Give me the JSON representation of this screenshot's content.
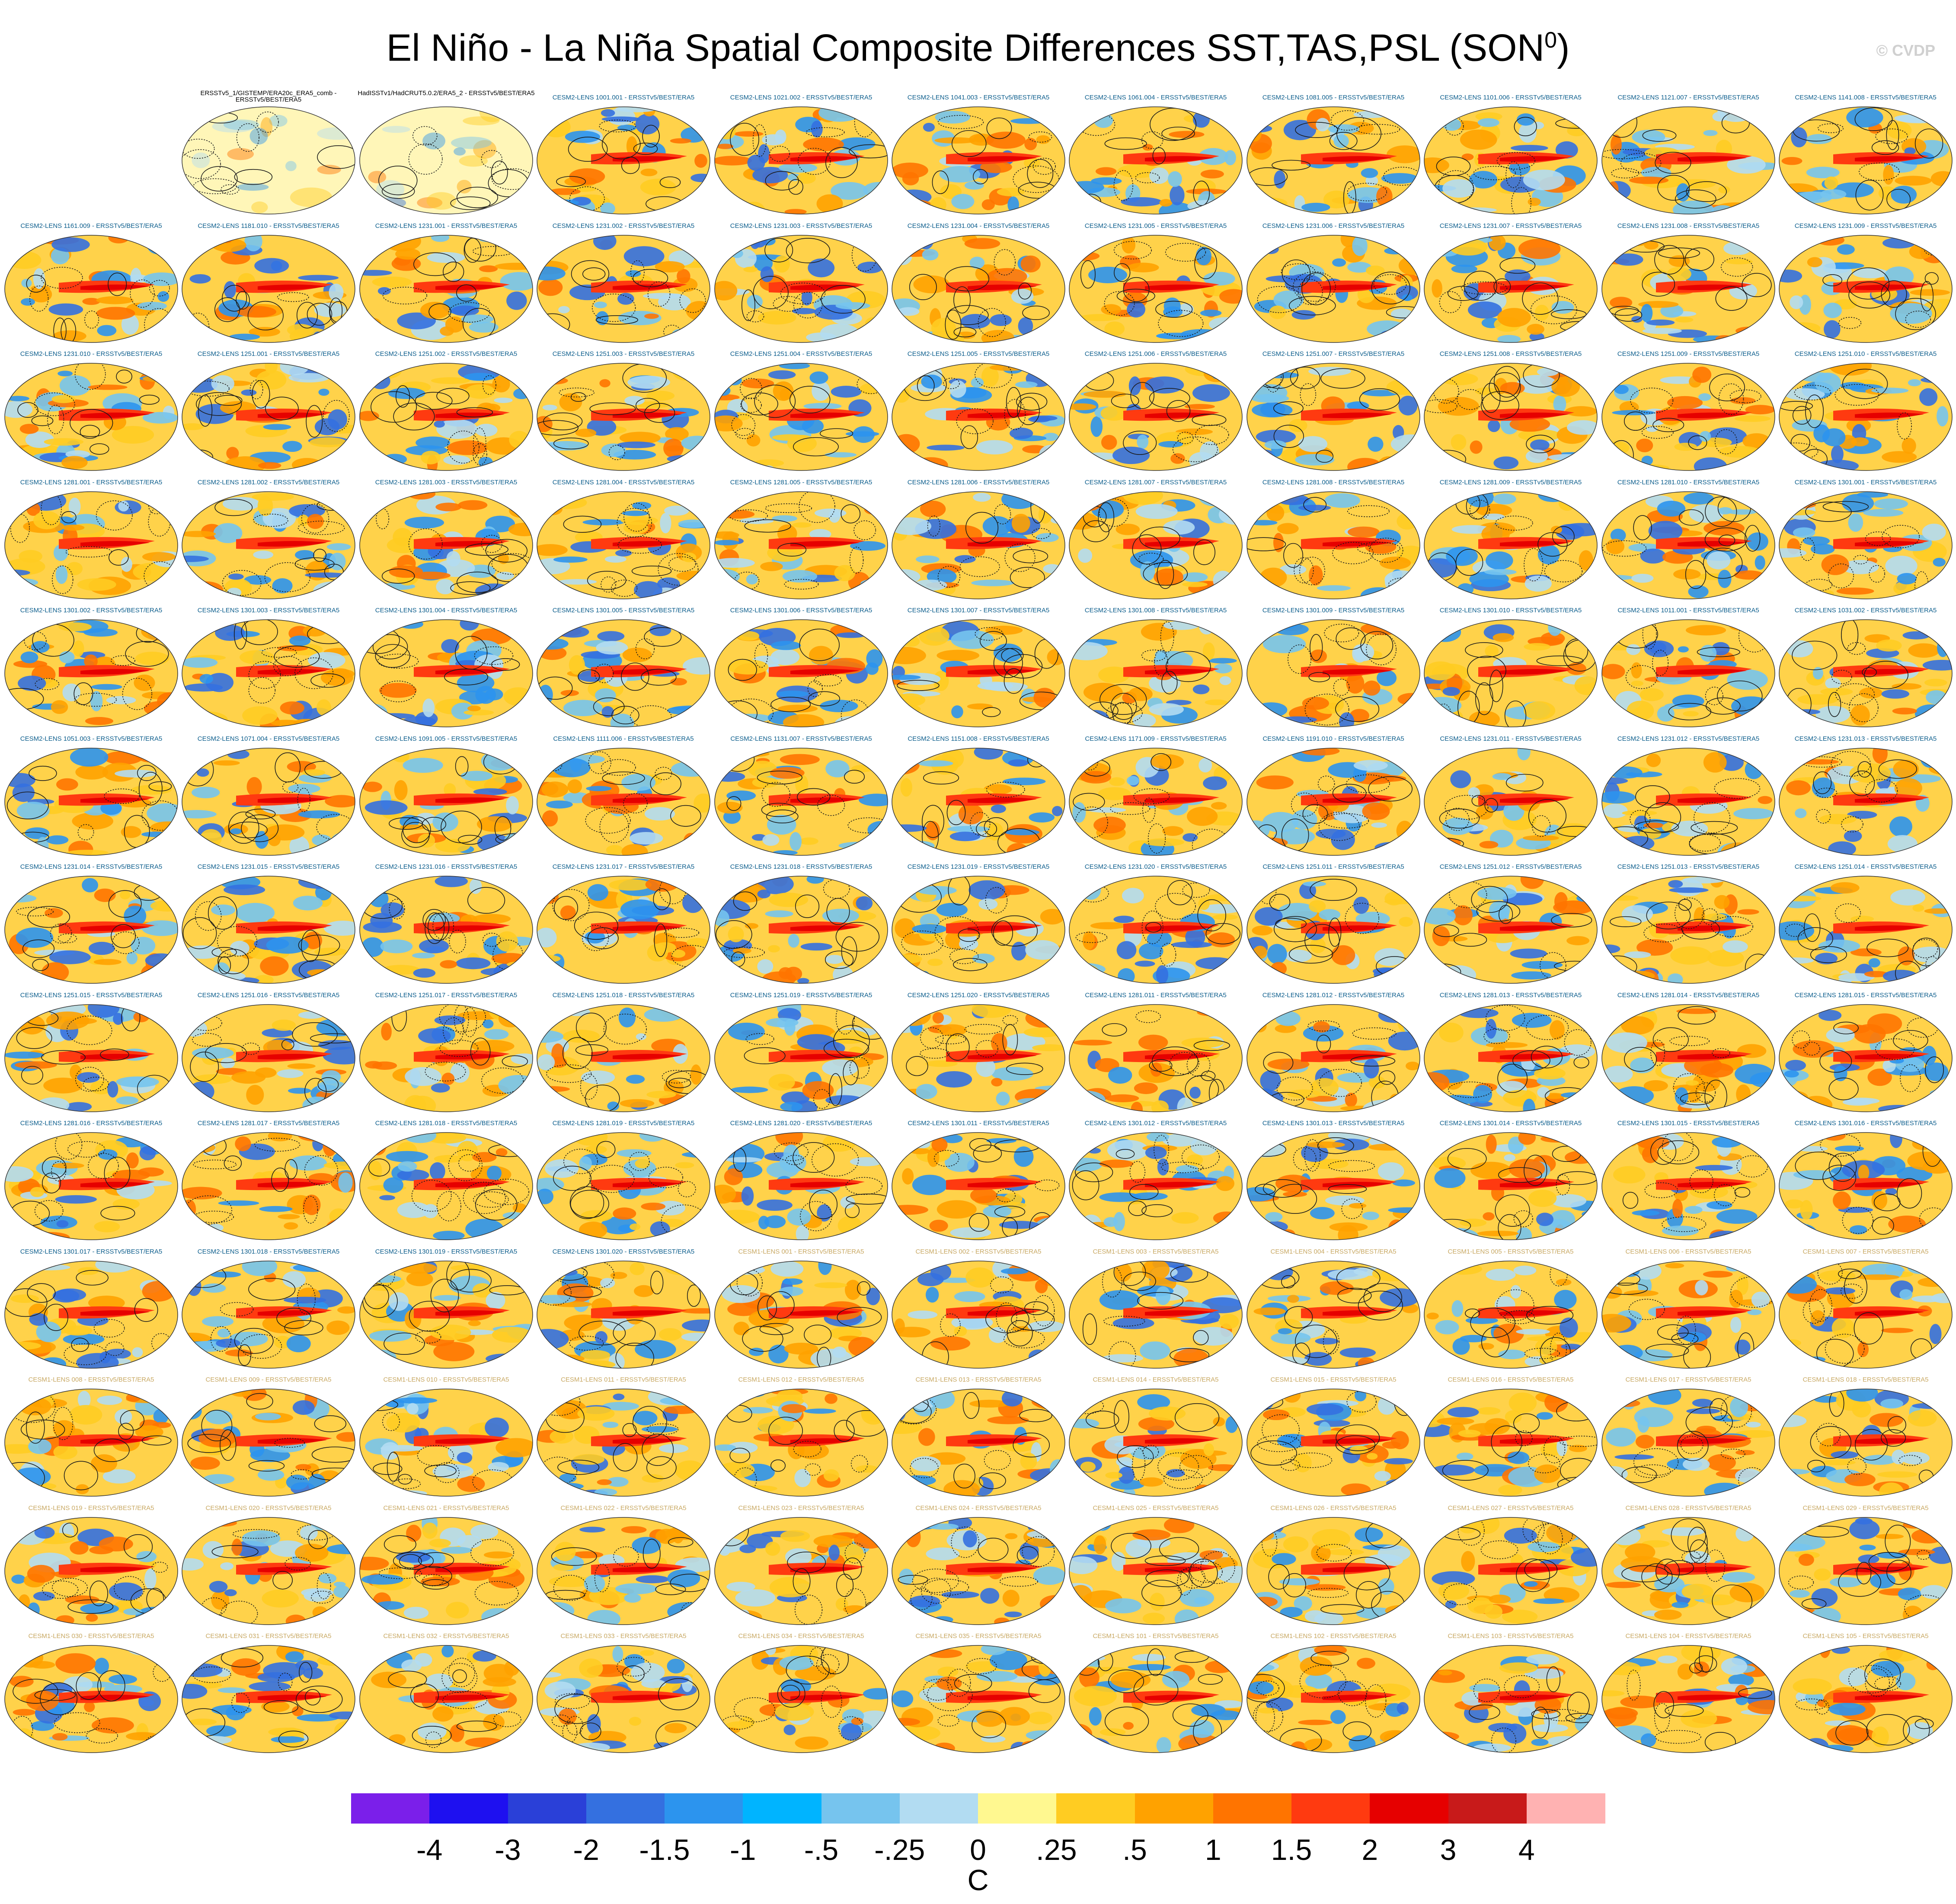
{
  "title": {
    "text": "El Niño - La Niña Spatial Composite Differences SST,TAS,PSL (SON",
    "superscript": "0",
    "suffix": ")"
  },
  "watermark": "© CVDP",
  "colorbar": {
    "colors": [
      "#7b1fea",
      "#1e10f0",
      "#2a40d8",
      "#3470e0",
      "#2c94ee",
      "#00b4ff",
      "#76c4ee",
      "#b2dcf2",
      "#fff890",
      "#ffcc22",
      "#ffa200",
      "#ff7400",
      "#ff3a10",
      "#e60000",
      "#c81a1a",
      "#ffb2b2"
    ],
    "labels": [
      "-4",
      "-3",
      "-2",
      "-1.5",
      "-1",
      "-.5",
      "-.25",
      "0",
      ".25",
      ".5",
      "1",
      "1.5",
      "2",
      "3",
      "4"
    ],
    "units": "C"
  },
  "chart_data": {
    "type": "heatmap",
    "title": "El Niño - La Niña Spatial Composite Differences SST,TAS,PSL (SON0)",
    "variables": [
      "SST",
      "TAS",
      "PSL"
    ],
    "season": "SON",
    "units": "C",
    "color_levels": [
      -4,
      -3,
      -2,
      -1.5,
      -1,
      -0.5,
      -0.25,
      0,
      0.25,
      0.5,
      1,
      1.5,
      2,
      3,
      4
    ],
    "grid_layout": {
      "rows": 13,
      "columns": 11
    },
    "panels": [
      {
        "label": "ERSSTv5_1/GISTEMP/ERA20c_ERA5_comb - ERSSTv5/BEST/ERA5",
        "group": "obs"
      },
      {
        "label": "HadISSTv1/HadCRUT5.0.2/ERA5_2 - ERSSTv5/BEST/ERA5",
        "group": "obs"
      },
      {
        "label": "CESM2-LENS 1001.001 - ERSSTv5/BEST/ERA5",
        "group": "cesm2"
      },
      {
        "label": "CESM2-LENS 1021.002 - ERSSTv5/BEST/ERA5",
        "group": "cesm2"
      },
      {
        "label": "CESM2-LENS 1041.003 - ERSSTv5/BEST/ERA5",
        "group": "cesm2"
      },
      {
        "label": "CESM2-LENS 1061.004 - ERSSTv5/BEST/ERA5",
        "group": "cesm2"
      },
      {
        "label": "CESM2-LENS 1081.005 - ERSSTv5/BEST/ERA5",
        "group": "cesm2"
      },
      {
        "label": "CESM2-LENS 1101.006 - ERSSTv5/BEST/ERA5",
        "group": "cesm2"
      },
      {
        "label": "CESM2-LENS 1121.007 - ERSSTv5/BEST/ERA5",
        "group": "cesm2"
      },
      {
        "label": "CESM2-LENS 1141.008 - ERSSTv5/BEST/ERA5",
        "group": "cesm2"
      },
      {
        "label": "CESM2-LENS 1161.009 - ERSSTv5/BEST/ERA5",
        "group": "cesm2"
      },
      {
        "label": "CESM2-LENS 1181.010 - ERSSTv5/BEST/ERA5",
        "group": "cesm2"
      },
      {
        "label": "CESM2-LENS 1231.001 - ERSSTv5/BEST/ERA5",
        "group": "cesm2"
      },
      {
        "label": "CESM2-LENS 1231.002 - ERSSTv5/BEST/ERA5",
        "group": "cesm2"
      },
      {
        "label": "CESM2-LENS 1231.003 - ERSSTv5/BEST/ERA5",
        "group": "cesm2"
      },
      {
        "label": "CESM2-LENS 1231.004 - ERSSTv5/BEST/ERA5",
        "group": "cesm2"
      },
      {
        "label": "CESM2-LENS 1231.005 - ERSSTv5/BEST/ERA5",
        "group": "cesm2"
      },
      {
        "label": "CESM2-LENS 1231.006 - ERSSTv5/BEST/ERA5",
        "group": "cesm2"
      },
      {
        "label": "CESM2-LENS 1231.007 - ERSSTv5/BEST/ERA5",
        "group": "cesm2"
      },
      {
        "label": "CESM2-LENS 1231.008 - ERSSTv5/BEST/ERA5",
        "group": "cesm2"
      },
      {
        "label": "CESM2-LENS 1231.009 - ERSSTv5/BEST/ERA5",
        "group": "cesm2"
      },
      {
        "label": "CESM2-LENS 1231.010 - ERSSTv5/BEST/ERA5",
        "group": "cesm2"
      },
      {
        "label": "CESM2-LENS 1251.001 - ERSSTv5/BEST/ERA5",
        "group": "cesm2"
      },
      {
        "label": "CESM2-LENS 1251.002 - ERSSTv5/BEST/ERA5",
        "group": "cesm2"
      },
      {
        "label": "CESM2-LENS 1251.003 - ERSSTv5/BEST/ERA5",
        "group": "cesm2"
      },
      {
        "label": "CESM2-LENS 1251.004 - ERSSTv5/BEST/ERA5",
        "group": "cesm2"
      },
      {
        "label": "CESM2-LENS 1251.005 - ERSSTv5/BEST/ERA5",
        "group": "cesm2"
      },
      {
        "label": "CESM2-LENS 1251.006 - ERSSTv5/BEST/ERA5",
        "group": "cesm2"
      },
      {
        "label": "CESM2-LENS 1251.007 - ERSSTv5/BEST/ERA5",
        "group": "cesm2"
      },
      {
        "label": "CESM2-LENS 1251.008 - ERSSTv5/BEST/ERA5",
        "group": "cesm2"
      },
      {
        "label": "CESM2-LENS 1251.009 - ERSSTv5/BEST/ERA5",
        "group": "cesm2"
      },
      {
        "label": "CESM2-LENS 1251.010 - ERSSTv5/BEST/ERA5",
        "group": "cesm2"
      },
      {
        "label": "CESM2-LENS 1281.001 - ERSSTv5/BEST/ERA5",
        "group": "cesm2"
      },
      {
        "label": "CESM2-LENS 1281.002 - ERSSTv5/BEST/ERA5",
        "group": "cesm2"
      },
      {
        "label": "CESM2-LENS 1281.003 - ERSSTv5/BEST/ERA5",
        "group": "cesm2"
      },
      {
        "label": "CESM2-LENS 1281.004 - ERSSTv5/BEST/ERA5",
        "group": "cesm2"
      },
      {
        "label": "CESM2-LENS 1281.005 - ERSSTv5/BEST/ERA5",
        "group": "cesm2"
      },
      {
        "label": "CESM2-LENS 1281.006 - ERSSTv5/BEST/ERA5",
        "group": "cesm2"
      },
      {
        "label": "CESM2-LENS 1281.007 - ERSSTv5/BEST/ERA5",
        "group": "cesm2"
      },
      {
        "label": "CESM2-LENS 1281.008 - ERSSTv5/BEST/ERA5",
        "group": "cesm2"
      },
      {
        "label": "CESM2-LENS 1281.009 - ERSSTv5/BEST/ERA5",
        "group": "cesm2"
      },
      {
        "label": "CESM2-LENS 1281.010 - ERSSTv5/BEST/ERA5",
        "group": "cesm2"
      },
      {
        "label": "CESM2-LENS 1301.001 - ERSSTv5/BEST/ERA5",
        "group": "cesm2"
      },
      {
        "label": "CESM2-LENS 1301.002 - ERSSTv5/BEST/ERA5",
        "group": "cesm2"
      },
      {
        "label": "CESM2-LENS 1301.003 - ERSSTv5/BEST/ERA5",
        "group": "cesm2"
      },
      {
        "label": "CESM2-LENS 1301.004 - ERSSTv5/BEST/ERA5",
        "group": "cesm2"
      },
      {
        "label": "CESM2-LENS 1301.005 - ERSSTv5/BEST/ERA5",
        "group": "cesm2"
      },
      {
        "label": "CESM2-LENS 1301.006 - ERSSTv5/BEST/ERA5",
        "group": "cesm2"
      },
      {
        "label": "CESM2-LENS 1301.007 - ERSSTv5/BEST/ERA5",
        "group": "cesm2"
      },
      {
        "label": "CESM2-LENS 1301.008 - ERSSTv5/BEST/ERA5",
        "group": "cesm2"
      },
      {
        "label": "CESM2-LENS 1301.009 - ERSSTv5/BEST/ERA5",
        "group": "cesm2"
      },
      {
        "label": "CESM2-LENS 1301.010 - ERSSTv5/BEST/ERA5",
        "group": "cesm2"
      },
      {
        "label": "CESM2-LENS 1011.001 - ERSSTv5/BEST/ERA5",
        "group": "cesm2"
      },
      {
        "label": "CESM2-LENS 1031.002 - ERSSTv5/BEST/ERA5",
        "group": "cesm2"
      },
      {
        "label": "CESM2-LENS 1051.003 - ERSSTv5/BEST/ERA5",
        "group": "cesm2"
      },
      {
        "label": "CESM2-LENS 1071.004 - ERSSTv5/BEST/ERA5",
        "group": "cesm2"
      },
      {
        "label": "CESM2-LENS 1091.005 - ERSSTv5/BEST/ERA5",
        "group": "cesm2"
      },
      {
        "label": "CESM2-LENS 1111.006 - ERSSTv5/BEST/ERA5",
        "group": "cesm2"
      },
      {
        "label": "CESM2-LENS 1131.007 - ERSSTv5/BEST/ERA5",
        "group": "cesm2"
      },
      {
        "label": "CESM2-LENS 1151.008 - ERSSTv5/BEST/ERA5",
        "group": "cesm2"
      },
      {
        "label": "CESM2-LENS 1171.009 - ERSSTv5/BEST/ERA5",
        "group": "cesm2"
      },
      {
        "label": "CESM2-LENS 1191.010 - ERSSTv5/BEST/ERA5",
        "group": "cesm2"
      },
      {
        "label": "CESM2-LENS 1231.011 - ERSSTv5/BEST/ERA5",
        "group": "cesm2"
      },
      {
        "label": "CESM2-LENS 1231.012 - ERSSTv5/BEST/ERA5",
        "group": "cesm2"
      },
      {
        "label": "CESM2-LENS 1231.013 - ERSSTv5/BEST/ERA5",
        "group": "cesm2"
      },
      {
        "label": "CESM2-LENS 1231.014 - ERSSTv5/BEST/ERA5",
        "group": "cesm2"
      },
      {
        "label": "CESM2-LENS 1231.015 - ERSSTv5/BEST/ERA5",
        "group": "cesm2"
      },
      {
        "label": "CESM2-LENS 1231.016 - ERSSTv5/BEST/ERA5",
        "group": "cesm2"
      },
      {
        "label": "CESM2-LENS 1231.017 - ERSSTv5/BEST/ERA5",
        "group": "cesm2"
      },
      {
        "label": "CESM2-LENS 1231.018 - ERSSTv5/BEST/ERA5",
        "group": "cesm2"
      },
      {
        "label": "CESM2-LENS 1231.019 - ERSSTv5/BEST/ERA5",
        "group": "cesm2"
      },
      {
        "label": "CESM2-LENS 1231.020 - ERSSTv5/BEST/ERA5",
        "group": "cesm2"
      },
      {
        "label": "CESM2-LENS 1251.011 - ERSSTv5/BEST/ERA5",
        "group": "cesm2"
      },
      {
        "label": "CESM2-LENS 1251.012 - ERSSTv5/BEST/ERA5",
        "group": "cesm2"
      },
      {
        "label": "CESM2-LENS 1251.013 - ERSSTv5/BEST/ERA5",
        "group": "cesm2"
      },
      {
        "label": "CESM2-LENS 1251.014 - ERSSTv5/BEST/ERA5",
        "group": "cesm2"
      },
      {
        "label": "CESM2-LENS 1251.015 - ERSSTv5/BEST/ERA5",
        "group": "cesm2"
      },
      {
        "label": "CESM2-LENS 1251.016 - ERSSTv5/BEST/ERA5",
        "group": "cesm2"
      },
      {
        "label": "CESM2-LENS 1251.017 - ERSSTv5/BEST/ERA5",
        "group": "cesm2"
      },
      {
        "label": "CESM2-LENS 1251.018 - ERSSTv5/BEST/ERA5",
        "group": "cesm2"
      },
      {
        "label": "CESM2-LENS 1251.019 - ERSSTv5/BEST/ERA5",
        "group": "cesm2"
      },
      {
        "label": "CESM2-LENS 1251.020 - ERSSTv5/BEST/ERA5",
        "group": "cesm2"
      },
      {
        "label": "CESM2-LENS 1281.011 - ERSSTv5/BEST/ERA5",
        "group": "cesm2"
      },
      {
        "label": "CESM2-LENS 1281.012 - ERSSTv5/BEST/ERA5",
        "group": "cesm2"
      },
      {
        "label": "CESM2-LENS 1281.013 - ERSSTv5/BEST/ERA5",
        "group": "cesm2"
      },
      {
        "label": "CESM2-LENS 1281.014 - ERSSTv5/BEST/ERA5",
        "group": "cesm2"
      },
      {
        "label": "CESM2-LENS 1281.015 - ERSSTv5/BEST/ERA5",
        "group": "cesm2"
      },
      {
        "label": "CESM2-LENS 1281.016 - ERSSTv5/BEST/ERA5",
        "group": "cesm2"
      },
      {
        "label": "CESM2-LENS 1281.017 - ERSSTv5/BEST/ERA5",
        "group": "cesm2"
      },
      {
        "label": "CESM2-LENS 1281.018 - ERSSTv5/BEST/ERA5",
        "group": "cesm2"
      },
      {
        "label": "CESM2-LENS 1281.019 - ERSSTv5/BEST/ERA5",
        "group": "cesm2"
      },
      {
        "label": "CESM2-LENS 1281.020 - ERSSTv5/BEST/ERA5",
        "group": "cesm2"
      },
      {
        "label": "CESM2-LENS 1301.011 - ERSSTv5/BEST/ERA5",
        "group": "cesm2"
      },
      {
        "label": "CESM2-LENS 1301.012 - ERSSTv5/BEST/ERA5",
        "group": "cesm2"
      },
      {
        "label": "CESM2-LENS 1301.013 - ERSSTv5/BEST/ERA5",
        "group": "cesm2"
      },
      {
        "label": "CESM2-LENS 1301.014 - ERSSTv5/BEST/ERA5",
        "group": "cesm2"
      },
      {
        "label": "CESM2-LENS 1301.015 - ERSSTv5/BEST/ERA5",
        "group": "cesm2"
      },
      {
        "label": "CESM2-LENS 1301.016 - ERSSTv5/BEST/ERA5",
        "group": "cesm2"
      },
      {
        "label": "CESM2-LENS 1301.017 - ERSSTv5/BEST/ERA5",
        "group": "cesm2"
      },
      {
        "label": "CESM2-LENS 1301.018 - ERSSTv5/BEST/ERA5",
        "group": "cesm2"
      },
      {
        "label": "CESM2-LENS 1301.019 - ERSSTv5/BEST/ERA5",
        "group": "cesm2"
      },
      {
        "label": "CESM2-LENS 1301.020 - ERSSTv5/BEST/ERA5",
        "group": "cesm2"
      },
      {
        "label": "CESM1-LENS 001 - ERSSTv5/BEST/ERA5",
        "group": "cesm1"
      },
      {
        "label": "CESM1-LENS 002 - ERSSTv5/BEST/ERA5",
        "group": "cesm1"
      },
      {
        "label": "CESM1-LENS 003 - ERSSTv5/BEST/ERA5",
        "group": "cesm1"
      },
      {
        "label": "CESM1-LENS 004 - ERSSTv5/BEST/ERA5",
        "group": "cesm1"
      },
      {
        "label": "CESM1-LENS 005 - ERSSTv5/BEST/ERA5",
        "group": "cesm1"
      },
      {
        "label": "CESM1-LENS 006 - ERSSTv5/BEST/ERA5",
        "group": "cesm1"
      },
      {
        "label": "CESM1-LENS 007 - ERSSTv5/BEST/ERA5",
        "group": "cesm1"
      },
      {
        "label": "CESM1-LENS 008 - ERSSTv5/BEST/ERA5",
        "group": "cesm1"
      },
      {
        "label": "CESM1-LENS 009 - ERSSTv5/BEST/ERA5",
        "group": "cesm1"
      },
      {
        "label": "CESM1-LENS 010 - ERSSTv5/BEST/ERA5",
        "group": "cesm1"
      },
      {
        "label": "CESM1-LENS 011 - ERSSTv5/BEST/ERA5",
        "group": "cesm1"
      },
      {
        "label": "CESM1-LENS 012 - ERSSTv5/BEST/ERA5",
        "group": "cesm1"
      },
      {
        "label": "CESM1-LENS 013 - ERSSTv5/BEST/ERA5",
        "group": "cesm1"
      },
      {
        "label": "CESM1-LENS 014 - ERSSTv5/BEST/ERA5",
        "group": "cesm1"
      },
      {
        "label": "CESM1-LENS 015 - ERSSTv5/BEST/ERA5",
        "group": "cesm1"
      },
      {
        "label": "CESM1-LENS 016 - ERSSTv5/BEST/ERA5",
        "group": "cesm1"
      },
      {
        "label": "CESM1-LENS 017 - ERSSTv5/BEST/ERA5",
        "group": "cesm1"
      },
      {
        "label": "CESM1-LENS 018 - ERSSTv5/BEST/ERA5",
        "group": "cesm1"
      },
      {
        "label": "CESM1-LENS 019 - ERSSTv5/BEST/ERA5",
        "group": "cesm1"
      },
      {
        "label": "CESM1-LENS 020 - ERSSTv5/BEST/ERA5",
        "group": "cesm1"
      },
      {
        "label": "CESM1-LENS 021 - ERSSTv5/BEST/ERA5",
        "group": "cesm1"
      },
      {
        "label": "CESM1-LENS 022 - ERSSTv5/BEST/ERA5",
        "group": "cesm1"
      },
      {
        "label": "CESM1-LENS 023 - ERSSTv5/BEST/ERA5",
        "group": "cesm1"
      },
      {
        "label": "CESM1-LENS 024 - ERSSTv5/BEST/ERA5",
        "group": "cesm1"
      },
      {
        "label": "CESM1-LENS 025 - ERSSTv5/BEST/ERA5",
        "group": "cesm1"
      },
      {
        "label": "CESM1-LENS 026 - ERSSTv5/BEST/ERA5",
        "group": "cesm1"
      },
      {
        "label": "CESM1-LENS 027 - ERSSTv5/BEST/ERA5",
        "group": "cesm1"
      },
      {
        "label": "CESM1-LENS 028 - ERSSTv5/BEST/ERA5",
        "group": "cesm1"
      },
      {
        "label": "CESM1-LENS 029 - ERSSTv5/BEST/ERA5",
        "group": "cesm1"
      },
      {
        "label": "CESM1-LENS 030 - ERSSTv5/BEST/ERA5",
        "group": "cesm1"
      },
      {
        "label": "CESM1-LENS 031 - ERSSTv5/BEST/ERA5",
        "group": "cesm1"
      },
      {
        "label": "CESM1-LENS 032 - ERSSTv5/BEST/ERA5",
        "group": "cesm1"
      },
      {
        "label": "CESM1-LENS 033 - ERSSTv5/BEST/ERA5",
        "group": "cesm1"
      },
      {
        "label": "CESM1-LENS 034 - ERSSTv5/BEST/ERA5",
        "group": "cesm1"
      },
      {
        "label": "CESM1-LENS 035 - ERSSTv5/BEST/ERA5",
        "group": "cesm1"
      },
      {
        "label": "CESM1-LENS 101 - ERSSTv5/BEST/ERA5",
        "group": "cesm1"
      },
      {
        "label": "CESM1-LENS 102 - ERSSTv5/BEST/ERA5",
        "group": "cesm1"
      },
      {
        "label": "CESM1-LENS 103 - ERSSTv5/BEST/ERA5",
        "group": "cesm1"
      },
      {
        "label": "CESM1-LENS 104 - ERSSTv5/BEST/ERA5",
        "group": "cesm1"
      },
      {
        "label": "CESM1-LENS 105 - ERSSTv5/BEST/ERA5",
        "group": "cesm1"
      }
    ]
  },
  "group_label_colors": {
    "obs": "#000000",
    "cesm2": "#0b5d8c",
    "cesm1": "#c8a862"
  }
}
